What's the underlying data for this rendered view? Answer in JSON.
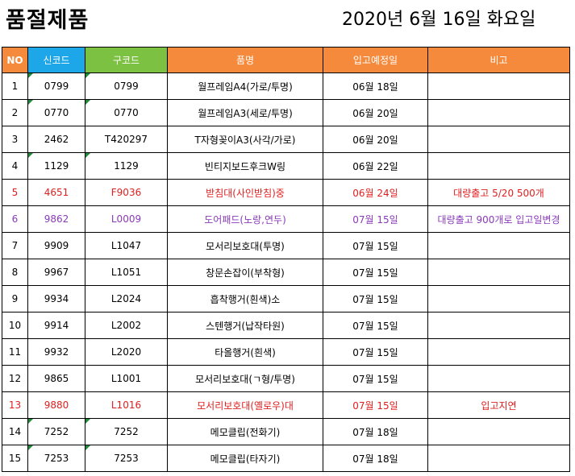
{
  "title": "품절제품",
  "date": "2020년 6월 16일 화요일",
  "headers": {
    "no": "NO",
    "new_code": "신코드",
    "old_code": "구코드",
    "product": "품명",
    "due_date": "입고예정일",
    "remarks": "비고"
  },
  "rows": [
    {
      "no": "1",
      "new_code": "0799",
      "old_code": "0799",
      "product": "월프레임A4(가로/투명)",
      "due_date": "06월 18일",
      "remarks": ""
    },
    {
      "no": "2",
      "new_code": "0770",
      "old_code": "0770",
      "product": "월프레임A3(세로/투명)",
      "due_date": "06월 20일",
      "remarks": ""
    },
    {
      "no": "3",
      "new_code": "2462",
      "old_code": "T420297",
      "product": "T자형꽂이A3(사각/가로)",
      "due_date": "06월 20일",
      "remarks": ""
    },
    {
      "no": "4",
      "new_code": "1129",
      "old_code": "1129",
      "product": "빈티지보드후크W링",
      "due_date": "06월 22일",
      "remarks": ""
    },
    {
      "no": "5",
      "new_code": "4651",
      "old_code": "F9036",
      "product": "받침대(사인받침)중",
      "due_date": "06월 24일",
      "remarks": "대량출고 5/20 500개"
    },
    {
      "no": "6",
      "new_code": "9862",
      "old_code": "L0009",
      "product": "도어패드(노랑,연두)",
      "due_date": "07월 15일",
      "remarks": "대량출고 900개로 입고일변경"
    },
    {
      "no": "7",
      "new_code": "9909",
      "old_code": "L1047",
      "product": "모서리보호대(투명)",
      "due_date": "07월 15일",
      "remarks": ""
    },
    {
      "no": "8",
      "new_code": "9967",
      "old_code": "L1051",
      "product": "창문손잡이(부착형)",
      "due_date": "07월 15일",
      "remarks": ""
    },
    {
      "no": "9",
      "new_code": "9934",
      "old_code": "L2024",
      "product": "흡착행거(흰색)소",
      "due_date": "07월 15일",
      "remarks": ""
    },
    {
      "no": "10",
      "new_code": "9914",
      "old_code": "L2002",
      "product": "스텐행거(납작타원)",
      "due_date": "07월 15일",
      "remarks": ""
    },
    {
      "no": "11",
      "new_code": "9932",
      "old_code": "L2020",
      "product": "타올행거(흰색)",
      "due_date": "07월 15일",
      "remarks": ""
    },
    {
      "no": "12",
      "new_code": "9865",
      "old_code": "L1001",
      "product": "모서리보호대(ㄱ형/투명)",
      "due_date": "07월 15일",
      "remarks": ""
    },
    {
      "no": "13",
      "new_code": "9880",
      "old_code": "L1016",
      "product": "모서리보호대(옐로우)대",
      "due_date": "07월 15일",
      "remarks": "입고지연"
    },
    {
      "no": "14",
      "new_code": "7252",
      "old_code": "7252",
      "product": "메모클립(전화기)",
      "due_date": "07월 18일",
      "remarks": ""
    },
    {
      "no": "15",
      "new_code": "7253",
      "old_code": "7253",
      "product": "메모클립(타자기)",
      "due_date": "07월 18일",
      "remarks": ""
    }
  ],
  "colors": {
    "header_orange": "#f58a3c",
    "header_blue": "#1ea7e8",
    "header_green": "#7cc142",
    "text_red": "#e02020",
    "text_purple": "#8a3ab9"
  }
}
